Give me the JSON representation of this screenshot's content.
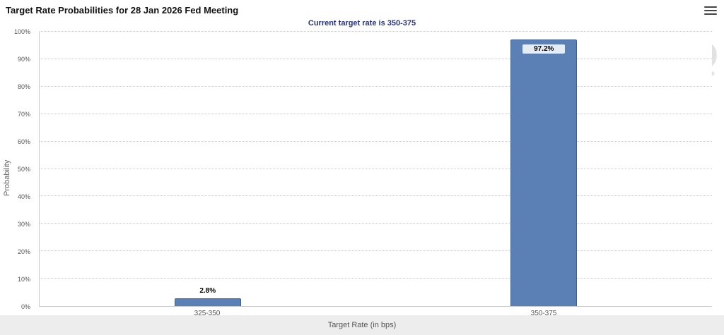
{
  "header": {
    "title": "Target Rate Probabilities for 28 Jan 2026 Fed Meeting"
  },
  "chart_data": {
    "type": "bar",
    "title": "Target Rate Probabilities for 28 Jan 2026 Fed Meeting",
    "subtitle": "Current target rate is 350-375",
    "categories": [
      "325-350",
      "350-375"
    ],
    "values": [
      2.8,
      97.2
    ],
    "value_labels": [
      "2.8%",
      "97.2%"
    ],
    "xlabel": "Target Rate (in bps)",
    "ylabel": "Probability",
    "ylim": [
      0,
      100
    ],
    "y_tick_step": 10,
    "y_tick_suffix": "%",
    "y_tick_labels": [
      "0%",
      "10%",
      "20%",
      "30%",
      "40%",
      "50%",
      "60%",
      "70%",
      "80%",
      "90%",
      "100%"
    ],
    "grid": "dotted-horizontal",
    "legend": "none",
    "bar_color": "#5b80b5",
    "bar_border_color": "#3a5f96",
    "subtitle_color": "#26357d",
    "watermark": "Q"
  }
}
